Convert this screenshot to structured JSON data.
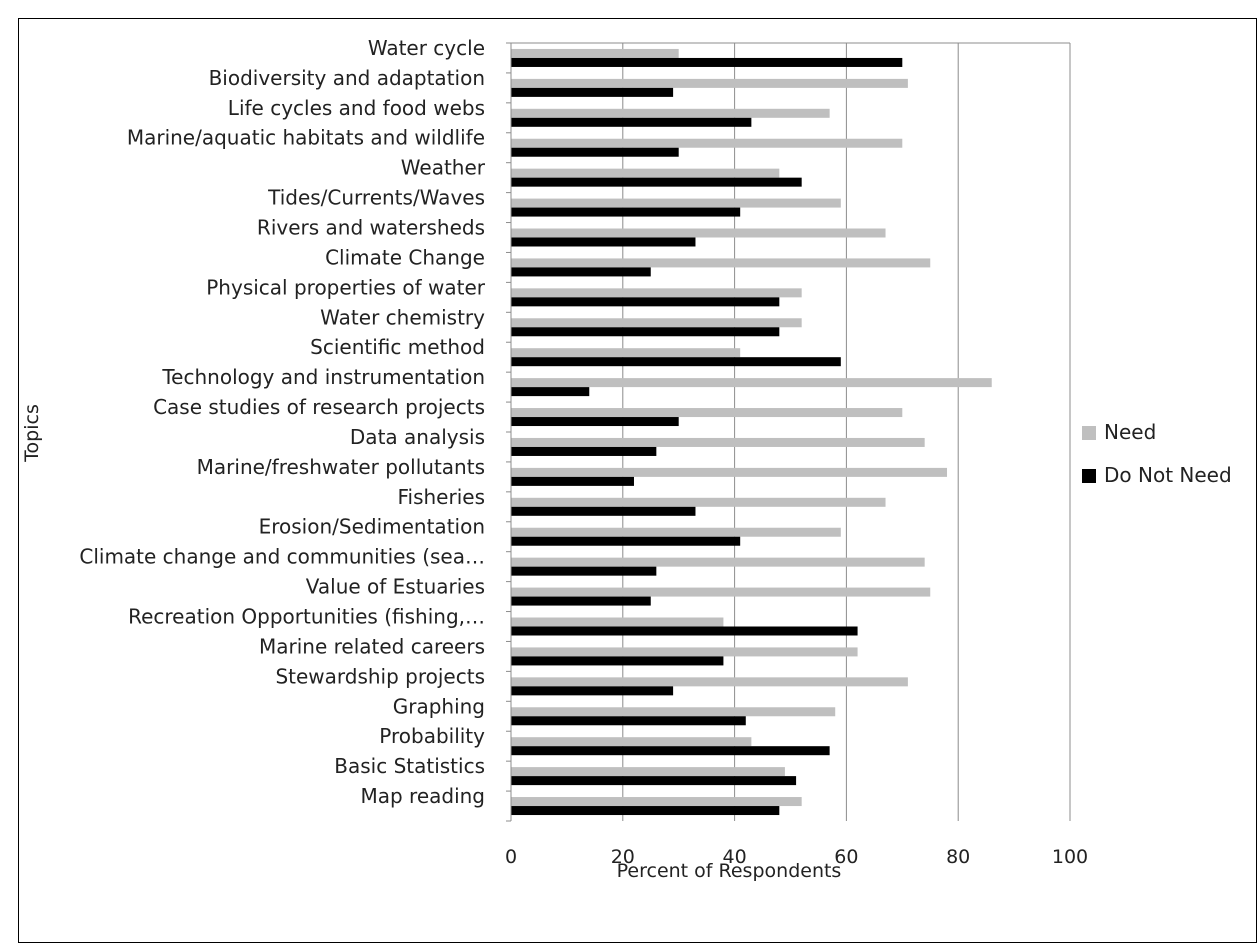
{
  "chart_data": {
    "type": "bar",
    "orientation": "horizontal",
    "title": "",
    "xlabel": "Percent of Respondents",
    "ylabel": "Topics",
    "xlim": [
      0,
      100
    ],
    "xticks": [
      0,
      20,
      40,
      60,
      80,
      100
    ],
    "grid": "vertical",
    "legend_position": "right",
    "categories": [
      "Water cycle",
      "Biodiversity and adaptation",
      "Life cycles and food webs",
      "Marine/aquatic habitats and wildlife",
      "Weather",
      "Tides/Currents/Waves",
      "Rivers and watersheds",
      "Climate Change",
      "Physical properties of water",
      "Water chemistry",
      "Scientific method",
      "Technology and instrumentation",
      "Case studies of research projects",
      "Data analysis",
      "Marine/freshwater pollutants",
      "Fisheries",
      "Erosion/Sedimentation",
      "Climate change and communities (sea…",
      "Value of Estuaries",
      "Recreation Opportunities (fishing,…",
      "Marine related careers",
      "Stewardship projects",
      "Graphing",
      "Probability",
      "Basic Statistics",
      "Map reading"
    ],
    "series": [
      {
        "name": "Need",
        "color": "#bfbfbf",
        "values": [
          30,
          71,
          57,
          70,
          48,
          59,
          67,
          75,
          52,
          52,
          41,
          86,
          70,
          74,
          78,
          67,
          59,
          74,
          75,
          38,
          62,
          71,
          58,
          43,
          49,
          52
        ]
      },
      {
        "name": "Do Not Need",
        "color": "#000000",
        "values": [
          70,
          29,
          43,
          30,
          52,
          41,
          33,
          25,
          48,
          48,
          59,
          14,
          30,
          26,
          22,
          33,
          41,
          26,
          25,
          62,
          38,
          29,
          42,
          57,
          51,
          48
        ]
      }
    ]
  }
}
